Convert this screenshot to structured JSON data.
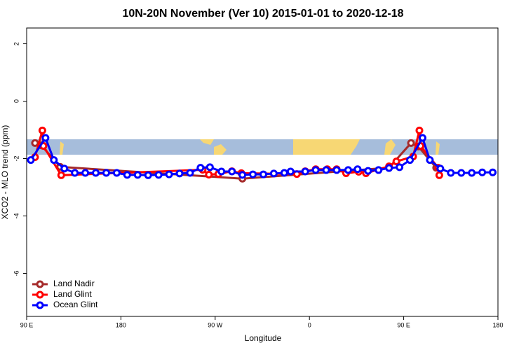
{
  "chart_data": {
    "type": "line",
    "title": "10N-20N November (Ver 10)   2015-01-01 to 2020-12-18",
    "x_label": "Longitude",
    "y_label": "XCO2 - MLO trend (ppm)",
    "xlim": [
      90,
      540
    ],
    "ylim": [
      -7.5,
      2.55
    ],
    "xticks": [
      {
        "value": 90,
        "label": "90 E"
      },
      180,
      {
        "value": 270,
        "label": "90 W"
      },
      {
        "value": 360,
        "label": "0"
      },
      {
        "value": 450,
        "label": "90 E"
      },
      {
        "value": 540,
        "label": "180"
      }
    ],
    "yticks": [
      -6,
      -4,
      -2,
      0,
      2
    ],
    "legend": "bottom-left",
    "series": [
      {
        "name": "Land Nadir",
        "color": "#a52a2a",
        "x": [
          98,
          104,
          122,
          296,
          436,
          457,
          464,
          481
        ],
        "values": [
          -1.46,
          -1.54,
          -2.29,
          -2.7,
          -2.32,
          -1.46,
          -1.58,
          -2.32
        ]
      },
      {
        "name": "Land Glint",
        "color": "#ff0000",
        "x": [
          98,
          105,
          106,
          123,
          258,
          264,
          273,
          286,
          295,
          348,
          356,
          366,
          377,
          386,
          395,
          407,
          414,
          436,
          443,
          459,
          465,
          466,
          483,
          484
        ],
        "values": [
          -1.95,
          -1.02,
          -1.56,
          -2.58,
          -2.39,
          -2.56,
          -2.54,
          -2.44,
          -2.51,
          -2.54,
          -2.44,
          -2.37,
          -2.37,
          -2.37,
          -2.51,
          -2.46,
          -2.51,
          -2.27,
          -2.1,
          -1.93,
          -1.02,
          -1.56,
          -2.32,
          -2.58
        ]
      },
      {
        "name": "Ocean Glint",
        "color": "#0000ff",
        "x": [
          94,
          108,
          116,
          126,
          136,
          146,
          156,
          166,
          176,
          186,
          196,
          206,
          216,
          226,
          236,
          246,
          256,
          265,
          276,
          286,
          296,
          306,
          316,
          326,
          336,
          342,
          356,
          366,
          376,
          386,
          397,
          406,
          416,
          426,
          436,
          446,
          456,
          468,
          475,
          485,
          495,
          505,
          515,
          525,
          535
        ],
        "values": [
          -2.05,
          -1.28,
          -2.05,
          -2.35,
          -2.5,
          -2.5,
          -2.5,
          -2.5,
          -2.5,
          -2.57,
          -2.57,
          -2.58,
          -2.57,
          -2.55,
          -2.52,
          -2.5,
          -2.32,
          -2.3,
          -2.45,
          -2.45,
          -2.57,
          -2.55,
          -2.55,
          -2.52,
          -2.5,
          -2.45,
          -2.45,
          -2.4,
          -2.4,
          -2.4,
          -2.4,
          -2.37,
          -2.43,
          -2.4,
          -2.33,
          -2.3,
          -2.05,
          -1.28,
          -2.05,
          -2.35,
          -2.5,
          -2.5,
          -2.5,
          -2.48,
          -2.48
        ]
      }
    ]
  }
}
